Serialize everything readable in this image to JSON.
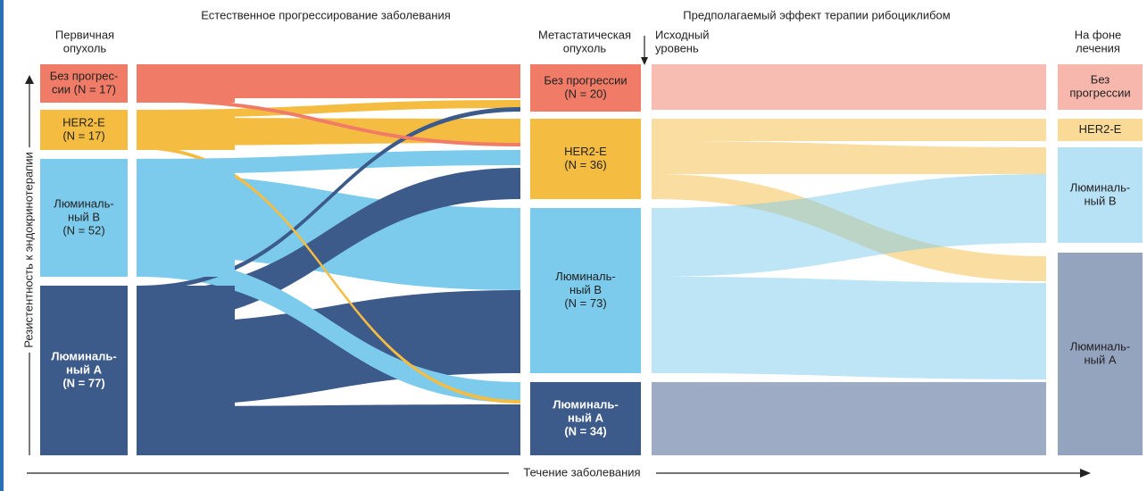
{
  "headers": {
    "natural": "Естественное прогрессирование заболевания",
    "therapy": "Предполагаемый эффект терапии рибоциклибом"
  },
  "columns": {
    "primary": [
      "Первичная",
      "опухоль"
    ],
    "metastatic": [
      "Метастатическая",
      "опухоль"
    ],
    "baseline": [
      "Исходный",
      "уровень"
    ],
    "treatment": [
      "На фоне",
      "лечения"
    ]
  },
  "nodes": {
    "primary": [
      {
        "lines": [
          "Без прогрес-",
          "сии (N = 17)"
        ]
      },
      {
        "lines": [
          "HER2-E",
          "(N = 17)"
        ]
      },
      {
        "lines": [
          "Люминаль-",
          "ный В",
          "(N = 52)"
        ]
      },
      {
        "lines": [
          "Люминаль-",
          "ный А",
          "(N = 77)"
        ]
      }
    ],
    "metastatic": [
      {
        "lines": [
          "Без прогрессии",
          "(N = 20)"
        ]
      },
      {
        "lines": [
          "HER2-E",
          "(N = 36)"
        ]
      },
      {
        "lines": [
          "Люминаль-",
          "ный В",
          "(N = 73)"
        ]
      },
      {
        "lines": [
          "Люминаль-",
          "ный А",
          "(N = 34)"
        ]
      }
    ],
    "treatment": [
      {
        "lines": [
          "Без",
          "прогрессии"
        ]
      },
      {
        "lines": [
          "HER2-E"
        ]
      },
      {
        "lines": [
          "Люминаль-",
          "ный В"
        ]
      },
      {
        "lines": [
          "Люминаль-",
          "ный А"
        ]
      }
    ]
  },
  "axes": {
    "vertical": "Резистентность к эндокринотерапии",
    "horizontal": "Течение заболевания"
  }
}
